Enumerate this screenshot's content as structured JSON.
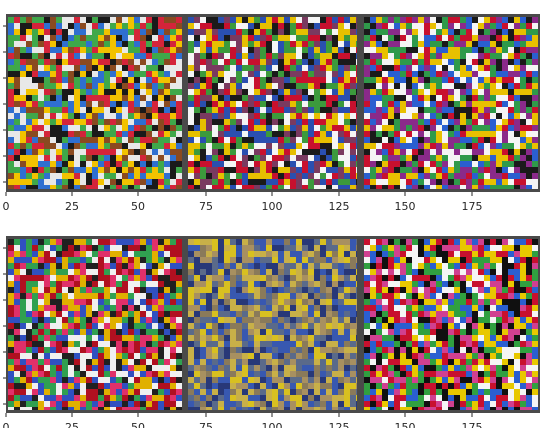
{
  "panels": [
    {
      "tiles": [
        "tile-1",
        "tile-2",
        "tile-3"
      ],
      "xticks": [
        "0",
        "25",
        "50",
        "75",
        "100",
        "125",
        "150",
        "175"
      ]
    },
    {
      "tiles": [
        "tile-4",
        "tile-5",
        "tile-6"
      ],
      "xticks": [
        "0",
        "25",
        "50",
        "75",
        "100",
        "125",
        "150",
        "175"
      ]
    }
  ],
  "colors": {
    "frame": "#4a4a4a",
    "axis": "#262626",
    "tile_palettes": [
      [
        "#f2c200",
        "#1a1a1a",
        "#d4243a",
        "#2f6fd0",
        "#3fa84a",
        "#e8e8e8",
        "#8a4a20"
      ],
      [
        "#c8102e",
        "#1a1a1a",
        "#f5f5f5",
        "#3c9a3c",
        "#e6c000",
        "#2a4fb0",
        "#7a3a60"
      ],
      [
        "#f5f5f5",
        "#1a1a1a",
        "#c8102e",
        "#2f9a4a",
        "#2a5fd0",
        "#e8c000",
        "#8a2a8a"
      ],
      [
        "#e0306a",
        "#f0f0f0",
        "#3050c0",
        "#30a050",
        "#e0b000",
        "#202020",
        "#b01020"
      ],
      [
        "#c8b048",
        "#3858b0",
        "#8a7a5a",
        "#d8c020",
        "#5a6a8a",
        "#a89060",
        "#283878"
      ],
      [
        "#101010",
        "#f5f5f5",
        "#e8c800",
        "#c8102e",
        "#2a5fd0",
        "#30a040",
        "#d04090"
      ]
    ]
  }
}
